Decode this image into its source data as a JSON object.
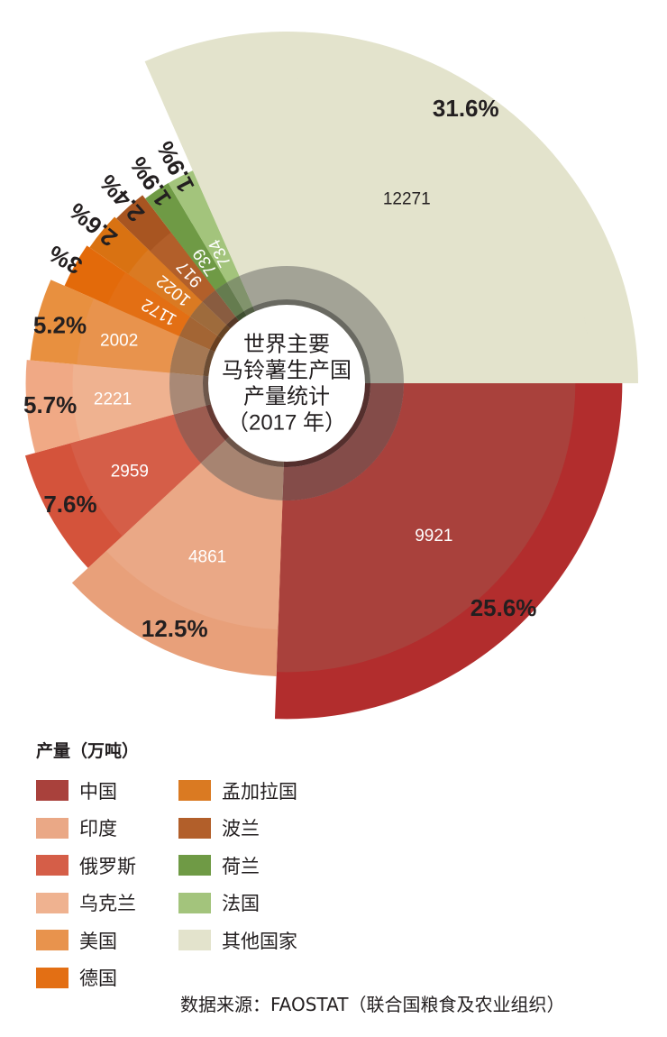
{
  "chart_data": {
    "type": "pie",
    "title": "世界主要\n马铃薯生产国\n产量统计\n（2017 年）",
    "title_lines": [
      "世界主要",
      "马铃薯生产国",
      "产量统计",
      "（2017 年）"
    ],
    "unit_label": "产量（万吨）",
    "categories": [
      "中国",
      "印度",
      "俄罗斯",
      "乌克兰",
      "美国",
      "德国",
      "孟加拉国",
      "波兰",
      "荷兰",
      "法国",
      "其他国家"
    ],
    "values": [
      9921,
      4861,
      2959,
      2221,
      2002,
      1172,
      1022,
      917,
      739,
      734,
      12271
    ],
    "percent_labels": [
      "25.6%",
      "12.5%",
      "7.6%",
      "5.7%",
      "5.2%",
      "3%",
      "2.6%",
      "2.4%",
      "1.9%",
      "1.9%",
      "31.6%"
    ],
    "colors": [
      "#a9413c",
      "#eaa886",
      "#d55e48",
      "#efb290",
      "#e8934d",
      "#e36f14",
      "#da7a22",
      "#b25f2a",
      "#6f9a45",
      "#a3c47c",
      "#e3e3cc"
    ],
    "outer_colors": [
      "#b22d2d",
      "#e8a07a",
      "#d4533b",
      "#f0a985",
      "#e8903f",
      "#e36a0a",
      "#d97212",
      "#a85521",
      "#6f9a45",
      "#a3c47c",
      "#e3e3cc"
    ],
    "legend_placement": "bottom"
  },
  "legend": {
    "title": "产量（万吨）",
    "column1": [
      {
        "label": "中国",
        "color": "#a9413c"
      },
      {
        "label": "印度",
        "color": "#eaa886"
      },
      {
        "label": "俄罗斯",
        "color": "#d55e48"
      },
      {
        "label": "乌克兰",
        "color": "#efb290"
      },
      {
        "label": "美国",
        "color": "#e8934d"
      },
      {
        "label": "德国",
        "color": "#e36f14"
      }
    ],
    "column2": [
      {
        "label": "孟加拉国",
        "color": "#da7a22"
      },
      {
        "label": "波兰",
        "color": "#b25f2a"
      },
      {
        "label": "荷兰",
        "color": "#6f9a45"
      },
      {
        "label": "法国",
        "color": "#a3c47c"
      },
      {
        "label": "其他国家",
        "color": "#e3e3cc"
      }
    ]
  },
  "source": "数据来源：FAOSTAT（联合国粮食及农业组织）"
}
